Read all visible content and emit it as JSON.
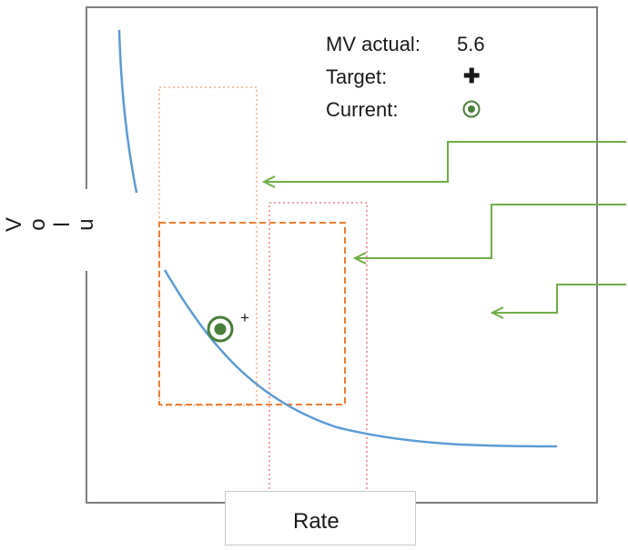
{
  "legend": {
    "mv_actual_label": "MV actual:",
    "mv_actual_value": "5.6",
    "target_label": "Target:",
    "target_symbol": "✚",
    "current_label": "Current:"
  },
  "axes": {
    "x_label": "Rate",
    "y_letters": [
      "V",
      "o",
      "l",
      "u"
    ]
  },
  "markers": {
    "target_marker": "+"
  },
  "colors": {
    "curve": "#5b9bd5",
    "current_point": "#4a7f3a",
    "arrows": "#70ad47",
    "operating_window": "#ed7d31",
    "rate_window": "#e8838a",
    "vol_window": "#f4b183",
    "frame": "#7f7f7f"
  }
}
